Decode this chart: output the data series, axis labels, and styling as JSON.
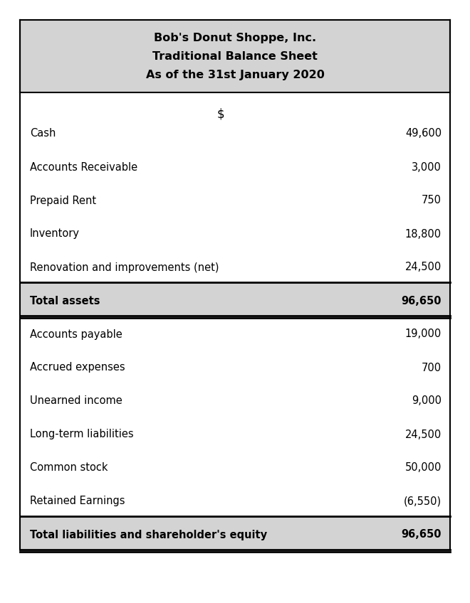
{
  "title_lines": [
    "Bob's Donut Shoppe, Inc.",
    "Traditional Balance Sheet",
    "As of the 31st January 2020"
  ],
  "currency_symbol": "$",
  "rows": [
    {
      "label": "Cash",
      "value": "49,600",
      "bold": false,
      "shaded": false,
      "separator_below": false
    },
    {
      "label": "Accounts Receivable",
      "value": "3,000",
      "bold": false,
      "shaded": false,
      "separator_below": false
    },
    {
      "label": "Prepaid Rent",
      "value": "750",
      "bold": false,
      "shaded": false,
      "separator_below": false
    },
    {
      "label": "Inventory",
      "value": "18,800",
      "bold": false,
      "shaded": false,
      "separator_below": false
    },
    {
      "label": "Renovation and improvements (net)",
      "value": "24,500",
      "bold": false,
      "shaded": false,
      "separator_below": true
    },
    {
      "label": "Total assets",
      "value": "96,650",
      "bold": true,
      "shaded": true,
      "separator_below": true
    },
    {
      "label": "Accounts payable",
      "value": "19,000",
      "bold": false,
      "shaded": false,
      "separator_below": false
    },
    {
      "label": "Accrued expenses",
      "value": "700",
      "bold": false,
      "shaded": false,
      "separator_below": false
    },
    {
      "label": "Unearned income",
      "value": "9,000",
      "bold": false,
      "shaded": false,
      "separator_below": false
    },
    {
      "label": "Long-term liabilities",
      "value": "24,500",
      "bold": false,
      "shaded": false,
      "separator_below": false
    },
    {
      "label": "Common stock",
      "value": "50,000",
      "bold": false,
      "shaded": false,
      "separator_below": false
    },
    {
      "label": "Retained Earnings",
      "value": "(6,550)",
      "bold": false,
      "shaded": false,
      "separator_below": true
    },
    {
      "label": "Total liabilities and shareholder's equity",
      "value": "96,650",
      "bold": true,
      "shaded": true,
      "separator_below": true
    }
  ],
  "header_bg": "#d3d3d3",
  "shaded_bg": "#d3d3d3",
  "white_bg": "#ffffff",
  "border_color": "#000000",
  "title_fontsize": 11.5,
  "body_fontsize": 10.5,
  "fig_width": 6.6,
  "fig_height": 8.48
}
